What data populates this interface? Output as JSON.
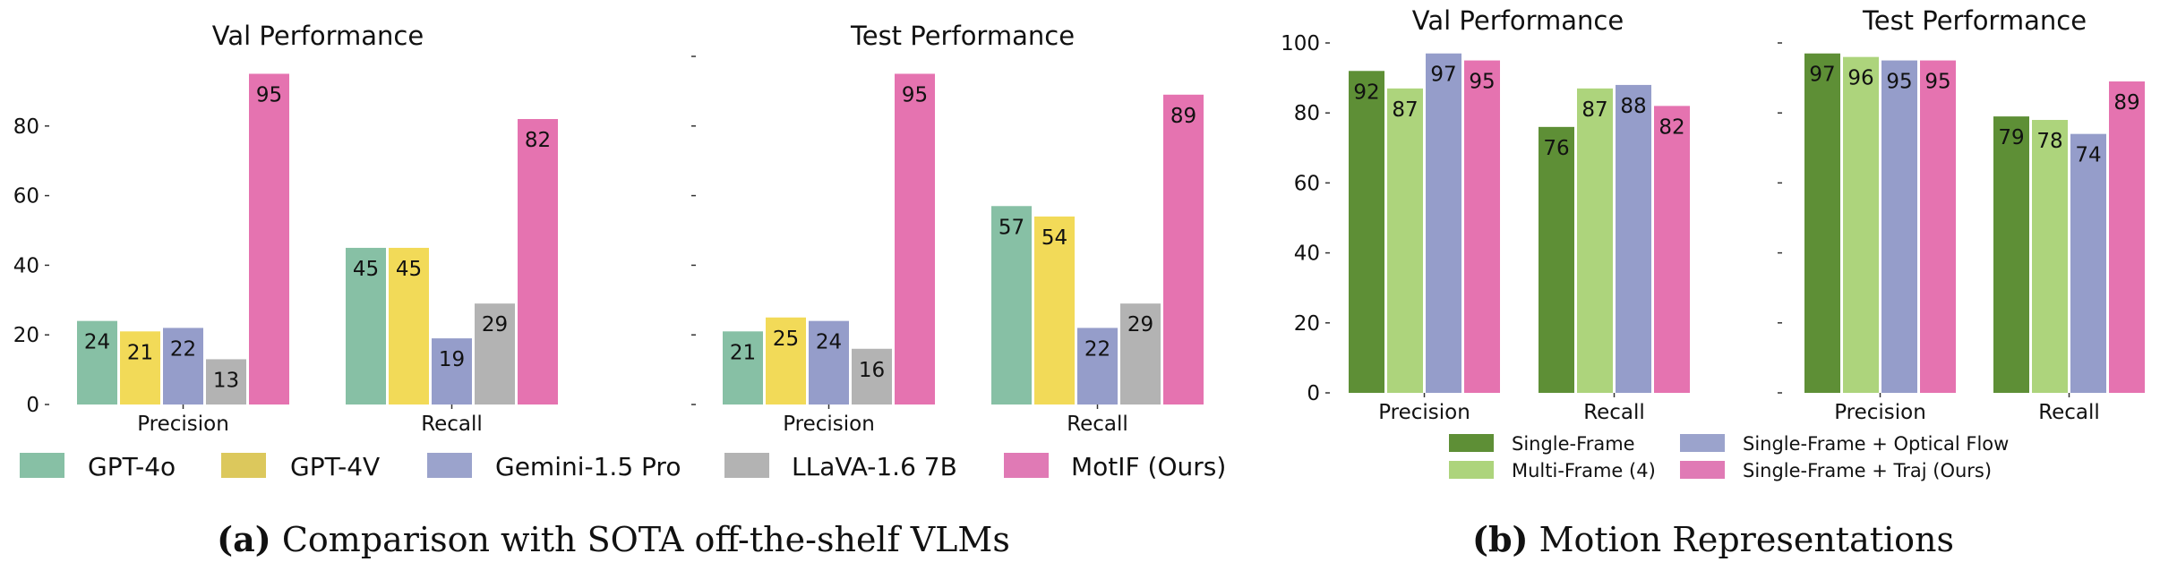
{
  "captions": [
    {
      "tag": "(a)",
      "text": "Comparison with SOTA off-the-shelf VLMs"
    },
    {
      "tag": "(b)",
      "text": "Motion Representations"
    }
  ],
  "legend_a": {
    "items": [
      {
        "label": "GPT-4o",
        "color": "#87c0a5"
      },
      {
        "label": "GPT-4V",
        "color": "#dcc85c"
      },
      {
        "label": "Gemini-1.5 Pro",
        "color": "#9ba3cc"
      },
      {
        "label": "LLaVA-1.6 7B",
        "color": "#b3b3b3"
      },
      {
        "label": "MotIF (Ours)",
        "color": "#e07ab5"
      }
    ]
  },
  "legend_b": {
    "items": [
      {
        "label": "Single-Frame",
        "color": "#5e8f36"
      },
      {
        "label": "Multi-Frame (4)",
        "color": "#add47c"
      },
      {
        "label": "Single-Frame + Optical Flow",
        "color": "#9ba3cc"
      },
      {
        "label": "Single-Frame + Traj (Ours)",
        "color": "#e07ab5"
      }
    ]
  },
  "chart_data": [
    {
      "type": "bar",
      "title": "Val Performance",
      "categories": [
        "Precision",
        "Recall"
      ],
      "ylim": [
        0,
        100
      ],
      "yticks": [
        0,
        20,
        40,
        60,
        80
      ],
      "series": [
        {
          "name": "GPT-4o",
          "values": [
            24,
            45
          ],
          "color": "#87c0a5"
        },
        {
          "name": "GPT-4V",
          "values": [
            21,
            45
          ],
          "color": "#f2da58"
        },
        {
          "name": "Gemini-1.5 Pro",
          "values": [
            22,
            19
          ],
          "color": "#959dca"
        },
        {
          "name": "LLaVA-1.6 7B",
          "values": [
            13,
            29
          ],
          "color": "#b3b3b3"
        },
        {
          "name": "MotIF (Ours)",
          "values": [
            95,
            82
          ],
          "color": "#e573b0"
        }
      ]
    },
    {
      "type": "bar",
      "title": "Test Performance",
      "categories": [
        "Precision",
        "Recall"
      ],
      "ylim": [
        0,
        100
      ],
      "series": [
        {
          "name": "GPT-4o",
          "values": [
            21,
            57
          ],
          "color": "#87c0a5"
        },
        {
          "name": "GPT-4V",
          "values": [
            25,
            54
          ],
          "color": "#f2da58"
        },
        {
          "name": "Gemini-1.5 Pro",
          "values": [
            24,
            22
          ],
          "color": "#959dca"
        },
        {
          "name": "LLaVA-1.6 7B",
          "values": [
            16,
            29
          ],
          "color": "#b3b3b3"
        },
        {
          "name": "MotIF (Ours)",
          "values": [
            95,
            89
          ],
          "color": "#e573b0"
        }
      ]
    },
    {
      "type": "bar",
      "title": "Val Performance",
      "categories": [
        "Precision",
        "Recall"
      ],
      "ylim": [
        0,
        100
      ],
      "yticks": [
        0,
        20,
        40,
        60,
        80,
        100
      ],
      "series": [
        {
          "name": "Single-Frame",
          "values": [
            92,
            76
          ],
          "color": "#5e8f36"
        },
        {
          "name": "Multi-Frame (4)",
          "values": [
            87,
            87
          ],
          "color": "#add47c"
        },
        {
          "name": "Single-Frame + Optical Flow",
          "values": [
            97,
            88
          ],
          "color": "#959dca"
        },
        {
          "name": "Single-Frame + Traj (Ours)",
          "values": [
            95,
            82
          ],
          "color": "#e573b0"
        }
      ]
    },
    {
      "type": "bar",
      "title": "Test Performance",
      "categories": [
        "Precision",
        "Recall"
      ],
      "ylim": [
        0,
        100
      ],
      "series": [
        {
          "name": "Single-Frame",
          "values": [
            97,
            79
          ],
          "color": "#5e8f36"
        },
        {
          "name": "Multi-Frame (4)",
          "values": [
            96,
            78
          ],
          "color": "#add47c"
        },
        {
          "name": "Single-Frame + Optical Flow",
          "values": [
            95,
            74
          ],
          "color": "#959dca"
        },
        {
          "name": "Single-Frame + Traj (Ours)",
          "values": [
            95,
            89
          ],
          "color": "#e573b0"
        }
      ]
    }
  ]
}
